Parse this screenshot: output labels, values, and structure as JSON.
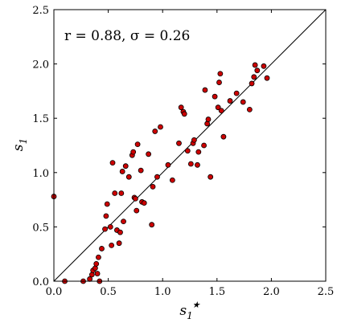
{
  "chart_data": {
    "type": "scatter",
    "title": "",
    "xlabel": "s1★",
    "xlabel_parts": {
      "base": "s",
      "sub": "1",
      "sup": "★"
    },
    "ylabel": "s1",
    "ylabel_parts": {
      "base": "s",
      "sub": "1"
    },
    "annotation": "r = 0.88, σ = 0.26",
    "xlim": [
      0,
      2.5
    ],
    "ylim": [
      0,
      2.5
    ],
    "x_ticks": [
      "0.0",
      "0.5",
      "1.0",
      "1.5",
      "2.0",
      "2.5"
    ],
    "y_ticks": [
      "0.0",
      "0.5",
      "1.0",
      "1.5",
      "2.0",
      "2.5"
    ],
    "grid": false,
    "reference_line": {
      "from": [
        0,
        0
      ],
      "to": [
        2.5,
        2.5
      ],
      "color": "#000000"
    },
    "marker_fill": "#cc0000",
    "marker_edge": "#000000",
    "points": [
      [
        0.0,
        0.78
      ],
      [
        0.1,
        0.0
      ],
      [
        0.27,
        0.0
      ],
      [
        0.33,
        0.02
      ],
      [
        0.35,
        0.06
      ],
      [
        0.36,
        0.1
      ],
      [
        0.38,
        0.12
      ],
      [
        0.39,
        0.16
      ],
      [
        0.4,
        0.07
      ],
      [
        0.41,
        0.22
      ],
      [
        0.42,
        0.0
      ],
      [
        0.44,
        0.3
      ],
      [
        0.47,
        0.48
      ],
      [
        0.48,
        0.6
      ],
      [
        0.49,
        0.71
      ],
      [
        0.52,
        0.5
      ],
      [
        0.53,
        0.33
      ],
      [
        0.54,
        1.09
      ],
      [
        0.56,
        0.81
      ],
      [
        0.58,
        0.47
      ],
      [
        0.6,
        0.35
      ],
      [
        0.61,
        0.45
      ],
      [
        0.62,
        0.81
      ],
      [
        0.63,
        1.01
      ],
      [
        0.64,
        0.55
      ],
      [
        0.66,
        1.06
      ],
      [
        0.69,
        0.96
      ],
      [
        0.72,
        1.16
      ],
      [
        0.73,
        1.19
      ],
      [
        0.74,
        0.77
      ],
      [
        0.75,
        0.76
      ],
      [
        0.76,
        0.65
      ],
      [
        0.77,
        1.26
      ],
      [
        0.8,
        1.02
      ],
      [
        0.81,
        0.73
      ],
      [
        0.83,
        0.72
      ],
      [
        0.87,
        1.17
      ],
      [
        0.9,
        0.52
      ],
      [
        0.91,
        0.87
      ],
      [
        0.93,
        1.38
      ],
      [
        0.95,
        0.96
      ],
      [
        0.98,
        1.42
      ],
      [
        1.05,
        1.07
      ],
      [
        1.09,
        0.93
      ],
      [
        1.15,
        1.27
      ],
      [
        1.17,
        1.6
      ],
      [
        1.19,
        1.56
      ],
      [
        1.2,
        1.54
      ],
      [
        1.23,
        1.2
      ],
      [
        1.26,
        1.08
      ],
      [
        1.28,
        1.27
      ],
      [
        1.29,
        1.3
      ],
      [
        1.32,
        1.07
      ],
      [
        1.33,
        1.19
      ],
      [
        1.38,
        1.25
      ],
      [
        1.39,
        1.76
      ],
      [
        1.41,
        1.45
      ],
      [
        1.42,
        1.49
      ],
      [
        1.44,
        0.96
      ],
      [
        1.48,
        1.7
      ],
      [
        1.51,
        1.6
      ],
      [
        1.52,
        1.83
      ],
      [
        1.53,
        1.91
      ],
      [
        1.54,
        1.57
      ],
      [
        1.56,
        1.33
      ],
      [
        1.62,
        1.66
      ],
      [
        1.68,
        1.73
      ],
      [
        1.74,
        1.65
      ],
      [
        1.8,
        1.58
      ],
      [
        1.82,
        1.82
      ],
      [
        1.84,
        1.88
      ],
      [
        1.85,
        1.99
      ],
      [
        1.87,
        1.94
      ],
      [
        1.93,
        1.98
      ],
      [
        1.96,
        1.87
      ]
    ]
  }
}
